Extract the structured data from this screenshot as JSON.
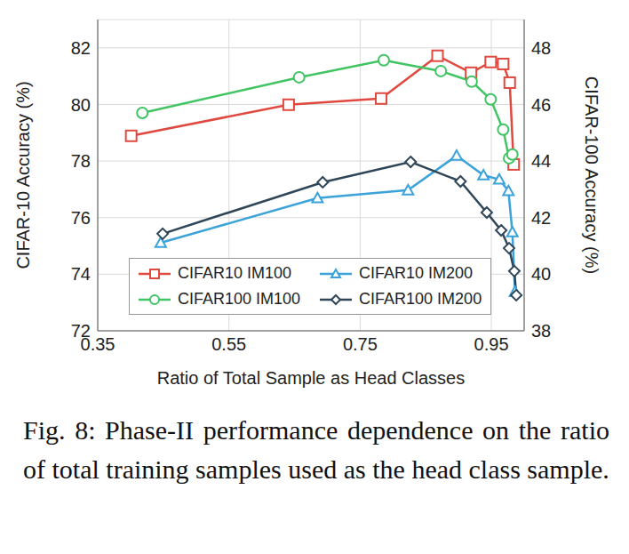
{
  "chart_data": {
    "type": "line",
    "xlabel": "Ratio of Total Sample as Head Classes",
    "ylabel": "CIFAR-10 Accuracy (%)",
    "y2label": "CIFAR-100 Accuracy (%)",
    "caption": "Fig. 8: Phase-II performance dependence on the ratio of total training samples used as the head class sample.",
    "xlim": [
      0.35,
      1.0
    ],
    "xticks": [
      0.35,
      0.55,
      0.75,
      0.95
    ],
    "ylim": [
      72,
      83
    ],
    "yticks": [
      72,
      74,
      76,
      78,
      80,
      82
    ],
    "y2lim": [
      38,
      49
    ],
    "y2ticks": [
      38,
      40,
      42,
      44,
      46,
      48
    ],
    "grid": true,
    "legend": "lower center",
    "series": [
      {
        "name": "CIFAR10 IM100",
        "color": "#e0493f",
        "marker": "square",
        "axis": "y",
        "x": [
          0.401,
          0.641,
          0.782,
          0.868,
          0.919,
          0.949,
          0.968,
          0.978,
          0.984
        ],
        "values": [
          78.89,
          79.99,
          80.21,
          81.72,
          81.12,
          81.5,
          81.43,
          80.77,
          77.88
        ]
      },
      {
        "name": "CIFAR10 IM200",
        "color": "#3ba3d9",
        "marker": "triangle",
        "axis": "y",
        "x": [
          0.446,
          0.685,
          0.823,
          0.897,
          0.938,
          0.962,
          0.976,
          0.982,
          0.986
        ],
        "values": [
          75.11,
          76.69,
          76.97,
          78.19,
          77.5,
          77.35,
          76.94,
          75.49,
          73.38
        ]
      },
      {
        "name": "CIFAR100 IM100",
        "color": "#41c463",
        "marker": "circle",
        "axis": "y2",
        "x": [
          0.418,
          0.657,
          0.786,
          0.873,
          0.92,
          0.949,
          0.968,
          0.977,
          0.982
        ],
        "values": [
          45.7,
          46.96,
          47.56,
          47.18,
          46.81,
          46.18,
          45.11,
          44.1,
          44.23
        ]
      },
      {
        "name": "CIFAR100 IM200",
        "color": "#2f4658",
        "marker": "diamond",
        "axis": "y2",
        "x": [
          0.449,
          0.693,
          0.827,
          0.903,
          0.943,
          0.965,
          0.977,
          0.985,
          0.988
        ],
        "values": [
          41.43,
          43.25,
          43.97,
          43.28,
          42.18,
          41.55,
          40.92,
          40.11,
          39.26
        ]
      }
    ]
  }
}
